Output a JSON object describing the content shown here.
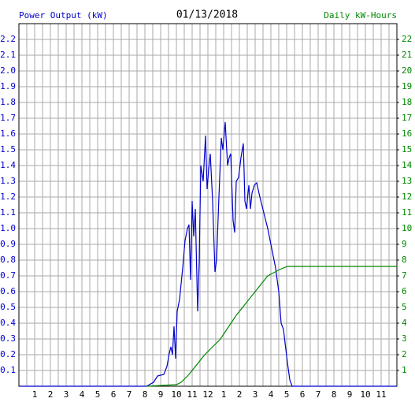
{
  "chart_data": {
    "type": "line",
    "title": "01/13/2018",
    "y_label": "Power Output (kW)",
    "y2_label": "Daily kW-Hours",
    "xlim": [
      0,
      24
    ],
    "xticks": [
      1,
      2,
      3,
      4,
      5,
      6,
      7,
      8,
      9,
      10,
      11,
      12,
      {
        "value": 13,
        "label": "1"
      },
      {
        "value": 14,
        "label": "2"
      },
      {
        "value": 15,
        "label": "3"
      },
      {
        "value": 16,
        "label": "4"
      },
      {
        "value": 17,
        "label": "5"
      },
      {
        "value": 18,
        "label": "6"
      },
      {
        "value": 19,
        "label": "7"
      },
      {
        "value": 20,
        "label": "8"
      },
      {
        "value": 21,
        "label": "9"
      },
      {
        "value": 22,
        "label": "10"
      },
      {
        "value": 23,
        "label": "11"
      }
    ],
    "ylim": [
      0,
      2.3
    ],
    "yticks": [
      0.1,
      0.2,
      0.3,
      0.4,
      0.5,
      0.6,
      0.7,
      0.8,
      0.9,
      1.0,
      1.1,
      1.2,
      1.3,
      1.4,
      1.5,
      1.6,
      1.7,
      1.8,
      1.9,
      2.0,
      2.1,
      2.2
    ],
    "y2lim": [
      0,
      23
    ],
    "y2ticks": [
      1,
      2,
      3,
      4,
      5,
      6,
      7,
      8,
      9,
      10,
      11,
      12,
      13,
      14,
      15,
      16,
      17,
      18,
      19,
      20,
      21,
      22
    ],
    "grid": true,
    "series": [
      {
        "name": "Power Output (kW)",
        "color": "#0000cc",
        "x": [
          0,
          8.1,
          8.55,
          8.8,
          9.2,
          9.4,
          9.55,
          9.65,
          9.75,
          9.85,
          9.95,
          10.05,
          10.2,
          10.4,
          10.55,
          10.7,
          10.8,
          10.9,
          11.0,
          11.1,
          11.2,
          11.35,
          11.45,
          11.55,
          11.7,
          11.85,
          11.95,
          12.05,
          12.15,
          12.3,
          12.45,
          12.55,
          12.7,
          12.85,
          12.95,
          13.1,
          13.25,
          13.35,
          13.45,
          13.6,
          13.7,
          13.8,
          13.95,
          14.1,
          14.25,
          14.35,
          14.45,
          14.6,
          14.7,
          14.8,
          14.95,
          15.1,
          15.3,
          15.55,
          15.8,
          16.05,
          16.3,
          16.5,
          16.65,
          16.8,
          16.9,
          17.05,
          17.2,
          17.35,
          24
        ],
        "values": [
          0,
          0,
          0.025,
          0.065,
          0.075,
          0.125,
          0.21,
          0.25,
          0.2,
          0.38,
          0.175,
          0.475,
          0.55,
          0.75,
          0.925,
          1.0,
          1.025,
          0.675,
          1.175,
          0.95,
          1.125,
          0.475,
          0.8,
          1.4,
          1.3,
          1.59,
          1.25,
          1.375,
          1.475,
          1.175,
          0.725,
          0.8,
          1.2,
          1.575,
          1.5,
          1.675,
          1.4,
          1.45,
          1.475,
          1.05,
          0.975,
          1.3,
          1.325,
          1.45,
          1.54,
          1.175,
          1.125,
          1.275,
          1.125,
          1.225,
          1.275,
          1.29,
          1.2,
          1.1,
          1.0,
          0.875,
          0.75,
          0.6,
          0.4,
          0.36,
          0.275,
          0.15,
          0.04,
          0,
          0
        ]
      },
      {
        "name": "Daily kW-Hours",
        "color": "#008800",
        "axis": "y2",
        "x": [
          8.1,
          10.0,
          10.3,
          10.8,
          11.8,
          12.8,
          13.8,
          14.8,
          15.8,
          16.55,
          17.05,
          24
        ],
        "values": [
          0,
          0.1,
          0.25,
          0.75,
          2.0,
          3.0,
          4.5,
          5.75,
          7.0,
          7.4,
          7.6,
          7.6
        ]
      }
    ]
  }
}
